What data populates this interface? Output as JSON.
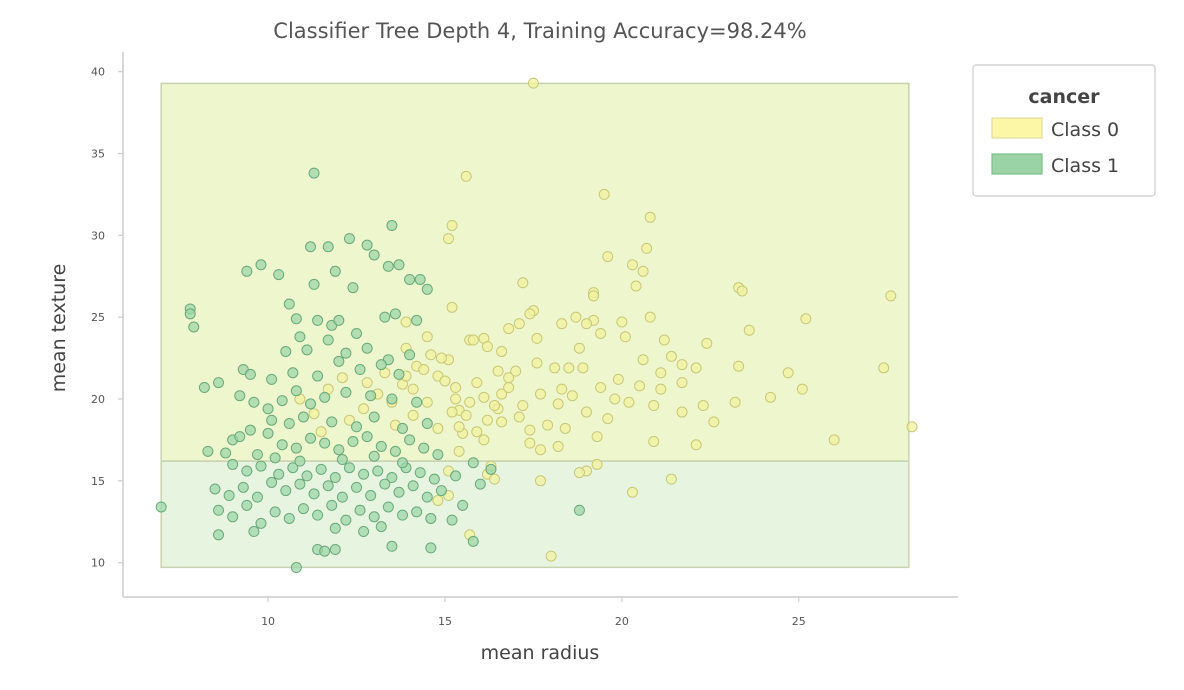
{
  "chart_data": {
    "type": "scatter",
    "title": "Classifier Tree Depth 4, Training Accuracy=98.24%",
    "xlabel": "mean radius",
    "ylabel": "mean texture",
    "xlim": [
      5.9,
      29.5
    ],
    "ylim": [
      7.9,
      41.2
    ],
    "xticks": [
      10,
      15,
      20,
      25
    ],
    "yticks": [
      10,
      15,
      20,
      25,
      30,
      35,
      40
    ],
    "grid": false,
    "legend": {
      "title": "cancer",
      "placement": "outside-top-right",
      "entries": [
        {
          "label": "Class 0",
          "color": "#fbf7a6"
        },
        {
          "label": "Class 1",
          "color": "#9ad4a6"
        }
      ]
    },
    "regions": [
      {
        "class": "Class 0",
        "x": [
          6.98,
          28.11
        ],
        "y": [
          16.2,
          39.28
        ],
        "color": "#dcee9a"
      },
      {
        "class": "Class 1",
        "x": [
          6.98,
          28.11
        ],
        "y": [
          9.71,
          16.2
        ],
        "color": "#cfebc2"
      }
    ],
    "series": [
      {
        "name": "Class 0",
        "color": "#f2f2a0",
        "points": [
          [
            17.5,
            39.3
          ],
          [
            15.6,
            33.6
          ],
          [
            19.5,
            32.5
          ],
          [
            20.8,
            31.1
          ],
          [
            15.2,
            30.6
          ],
          [
            15.1,
            29.8
          ],
          [
            20.7,
            29.2
          ],
          [
            19.6,
            28.7
          ],
          [
            20.3,
            28.2
          ],
          [
            17.2,
            27.1
          ],
          [
            20.6,
            27.8
          ],
          [
            19.2,
            26.5
          ],
          [
            20.4,
            26.9
          ],
          [
            23.3,
            26.8
          ],
          [
            23.4,
            26.6
          ],
          [
            27.6,
            26.3
          ],
          [
            19.2,
            26.3
          ],
          [
            17.5,
            25.4
          ],
          [
            17.4,
            25.2
          ],
          [
            19.2,
            24.8
          ],
          [
            15.2,
            25.6
          ],
          [
            25.2,
            24.9
          ],
          [
            18.7,
            25.0
          ],
          [
            20.8,
            25.0
          ],
          [
            19.0,
            24.6
          ],
          [
            16.1,
            23.7
          ],
          [
            20.0,
            24.7
          ],
          [
            23.6,
            24.2
          ],
          [
            15.7,
            23.6
          ],
          [
            14.6,
            22.7
          ],
          [
            15.1,
            22.4
          ],
          [
            16.2,
            23.2
          ],
          [
            17.6,
            22.2
          ],
          [
            18.1,
            21.9
          ],
          [
            18.5,
            21.9
          ],
          [
            18.9,
            21.9
          ],
          [
            20.6,
            22.4
          ],
          [
            21.4,
            22.6
          ],
          [
            21.7,
            22.1
          ],
          [
            22.1,
            21.9
          ],
          [
            23.3,
            22.0
          ],
          [
            24.7,
            21.6
          ],
          [
            27.4,
            21.9
          ],
          [
            19.9,
            21.2
          ],
          [
            21.7,
            21.0
          ],
          [
            20.5,
            20.8
          ],
          [
            21.1,
            20.6
          ],
          [
            19.4,
            20.7
          ],
          [
            18.3,
            20.6
          ],
          [
            17.7,
            20.3
          ],
          [
            16.6,
            20.3
          ],
          [
            16.1,
            20.1
          ],
          [
            15.7,
            19.8
          ],
          [
            15.4,
            19.3
          ],
          [
            16.2,
            18.7
          ],
          [
            17.1,
            18.9
          ],
          [
            17.9,
            18.4
          ],
          [
            18.4,
            18.2
          ],
          [
            19.0,
            19.2
          ],
          [
            19.6,
            18.8
          ],
          [
            20.2,
            19.8
          ],
          [
            20.9,
            19.6
          ],
          [
            22.3,
            19.6
          ],
          [
            23.2,
            19.8
          ],
          [
            24.2,
            20.1
          ],
          [
            25.1,
            20.6
          ],
          [
            28.2,
            18.3
          ],
          [
            26.0,
            17.5
          ],
          [
            22.1,
            17.2
          ],
          [
            20.9,
            17.4
          ],
          [
            19.3,
            17.7
          ],
          [
            17.4,
            17.3
          ],
          [
            16.1,
            17.5
          ],
          [
            15.5,
            17.9
          ],
          [
            15.4,
            16.8
          ],
          [
            16.3,
            15.9
          ],
          [
            17.7,
            16.9
          ],
          [
            18.2,
            17.1
          ],
          [
            19.3,
            16.0
          ],
          [
            19.0,
            15.6
          ],
          [
            16.2,
            15.4
          ],
          [
            17.7,
            15.0
          ],
          [
            20.3,
            14.3
          ],
          [
            21.4,
            15.1
          ],
          [
            15.7,
            11.7
          ],
          [
            18.0,
            10.4
          ],
          [
            14.2,
            22.0
          ],
          [
            14.8,
            21.4
          ],
          [
            14.1,
            20.6
          ],
          [
            13.8,
            20.9
          ],
          [
            14.4,
            21.8
          ],
          [
            15.0,
            21.1
          ],
          [
            15.3,
            20.7
          ],
          [
            15.9,
            21.0
          ],
          [
            16.8,
            21.3
          ],
          [
            17.0,
            21.7
          ],
          [
            16.8,
            20.7
          ],
          [
            15.2,
            19.2
          ],
          [
            15.6,
            19.0
          ],
          [
            16.5,
            19.4
          ],
          [
            17.2,
            19.6
          ],
          [
            16.8,
            24.3
          ],
          [
            17.1,
            24.6
          ],
          [
            16.6,
            22.9
          ],
          [
            18.8,
            23.1
          ],
          [
            13.9,
            24.7
          ],
          [
            14.5,
            23.8
          ],
          [
            13.9,
            23.1
          ],
          [
            14.9,
            22.5
          ],
          [
            14.5,
            19.8
          ],
          [
            14.1,
            19.0
          ],
          [
            13.6,
            18.4
          ],
          [
            14.8,
            18.2
          ],
          [
            15.4,
            18.3
          ],
          [
            15.9,
            18.0
          ],
          [
            16.6,
            18.6
          ],
          [
            17.4,
            18.1
          ],
          [
            18.2,
            19.7
          ],
          [
            18.6,
            20.2
          ],
          [
            19.8,
            20.0
          ],
          [
            15.8,
            23.6
          ],
          [
            16.5,
            21.7
          ],
          [
            15.3,
            20.0
          ],
          [
            16.4,
            19.6
          ],
          [
            21.7,
            19.2
          ],
          [
            22.6,
            18.6
          ],
          [
            18.8,
            15.5
          ],
          [
            16.4,
            15.1
          ],
          [
            15.1,
            15.6
          ],
          [
            20.1,
            23.8
          ],
          [
            13.3,
            21.6
          ],
          [
            12.8,
            21.0
          ],
          [
            13.1,
            20.3
          ],
          [
            12.7,
            19.4
          ],
          [
            13.5,
            19.8
          ],
          [
            12.3,
            18.7
          ],
          [
            11.5,
            18.0
          ],
          [
            11.3,
            19.1
          ],
          [
            10.9,
            20.0
          ],
          [
            11.7,
            20.6
          ],
          [
            12.1,
            21.3
          ],
          [
            13.9,
            21.4
          ],
          [
            17.6,
            23.7
          ],
          [
            18.3,
            24.6
          ],
          [
            19.4,
            24.0
          ],
          [
            21.2,
            23.6
          ],
          [
            22.4,
            23.4
          ],
          [
            21.1,
            21.6
          ],
          [
            15.1,
            14.1
          ],
          [
            14.8,
            13.8
          ]
        ]
      },
      {
        "name": "Class 1",
        "color": "#9ed6a8",
        "points": [
          [
            11.3,
            33.8
          ],
          [
            11.2,
            29.3
          ],
          [
            11.7,
            29.3
          ],
          [
            12.3,
            29.8
          ],
          [
            12.8,
            29.4
          ],
          [
            13.0,
            28.8
          ],
          [
            13.5,
            30.6
          ],
          [
            13.4,
            28.1
          ],
          [
            13.7,
            28.2
          ],
          [
            9.8,
            28.2
          ],
          [
            9.4,
            27.8
          ],
          [
            10.3,
            27.6
          ],
          [
            11.3,
            27.0
          ],
          [
            11.9,
            27.8
          ],
          [
            12.4,
            26.8
          ],
          [
            14.0,
            27.3
          ],
          [
            14.3,
            27.3
          ],
          [
            14.5,
            26.7
          ],
          [
            7.8,
            25.5
          ],
          [
            7.8,
            25.2
          ],
          [
            7.9,
            24.4
          ],
          [
            10.6,
            25.8
          ],
          [
            10.8,
            24.9
          ],
          [
            11.4,
            24.8
          ],
          [
            11.8,
            24.5
          ],
          [
            12.0,
            24.8
          ],
          [
            12.5,
            24.0
          ],
          [
            13.3,
            25.0
          ],
          [
            13.6,
            25.2
          ],
          [
            14.2,
            24.8
          ],
          [
            10.9,
            23.8
          ],
          [
            11.7,
            23.6
          ],
          [
            10.5,
            22.9
          ],
          [
            11.1,
            23.0
          ],
          [
            12.2,
            22.8
          ],
          [
            12.8,
            23.1
          ],
          [
            13.4,
            22.4
          ],
          [
            14.0,
            22.7
          ],
          [
            9.3,
            21.8
          ],
          [
            9.5,
            21.5
          ],
          [
            10.1,
            21.2
          ],
          [
            10.7,
            21.6
          ],
          [
            11.4,
            21.4
          ],
          [
            12.0,
            22.3
          ],
          [
            12.6,
            21.8
          ],
          [
            13.2,
            22.1
          ],
          [
            13.7,
            21.5
          ],
          [
            8.2,
            20.7
          ],
          [
            8.6,
            21.0
          ],
          [
            9.2,
            20.2
          ],
          [
            9.6,
            19.8
          ],
          [
            10.0,
            19.4
          ],
          [
            10.4,
            19.9
          ],
          [
            10.8,
            20.5
          ],
          [
            11.2,
            19.7
          ],
          [
            11.6,
            20.1
          ],
          [
            12.2,
            20.4
          ],
          [
            12.9,
            20.2
          ],
          [
            13.5,
            20.0
          ],
          [
            14.2,
            19.8
          ],
          [
            8.3,
            16.8
          ],
          [
            8.8,
            16.7
          ],
          [
            9.0,
            17.5
          ],
          [
            9.2,
            17.7
          ],
          [
            9.5,
            18.1
          ],
          [
            10.0,
            17.9
          ],
          [
            10.4,
            17.2
          ],
          [
            10.8,
            17.0
          ],
          [
            11.2,
            17.6
          ],
          [
            11.6,
            17.3
          ],
          [
            12.0,
            16.9
          ],
          [
            12.4,
            17.4
          ],
          [
            12.8,
            17.7
          ],
          [
            13.2,
            17.1
          ],
          [
            13.6,
            16.8
          ],
          [
            14.0,
            17.5
          ],
          [
            14.4,
            17.0
          ],
          [
            14.8,
            16.6
          ],
          [
            9.0,
            16.0
          ],
          [
            9.4,
            15.6
          ],
          [
            9.8,
            15.9
          ],
          [
            10.3,
            15.4
          ],
          [
            10.7,
            15.8
          ],
          [
            11.1,
            15.3
          ],
          [
            11.5,
            15.7
          ],
          [
            11.9,
            15.2
          ],
          [
            12.3,
            15.8
          ],
          [
            12.7,
            15.4
          ],
          [
            13.1,
            15.6
          ],
          [
            13.5,
            15.2
          ],
          [
            13.9,
            15.8
          ],
          [
            14.3,
            15.5
          ],
          [
            14.7,
            15.1
          ],
          [
            15.3,
            15.3
          ],
          [
            15.8,
            16.1
          ],
          [
            8.5,
            14.5
          ],
          [
            8.9,
            14.1
          ],
          [
            9.3,
            14.6
          ],
          [
            9.7,
            14.0
          ],
          [
            10.1,
            14.9
          ],
          [
            10.5,
            14.4
          ],
          [
            10.9,
            14.8
          ],
          [
            11.3,
            14.2
          ],
          [
            11.7,
            14.7
          ],
          [
            12.1,
            14.0
          ],
          [
            12.5,
            14.6
          ],
          [
            12.9,
            14.1
          ],
          [
            13.3,
            14.8
          ],
          [
            13.7,
            14.3
          ],
          [
            14.1,
            14.7
          ],
          [
            14.5,
            14.0
          ],
          [
            14.9,
            14.4
          ],
          [
            8.6,
            13.2
          ],
          [
            9.0,
            12.8
          ],
          [
            9.4,
            13.5
          ],
          [
            9.8,
            12.4
          ],
          [
            10.2,
            13.1
          ],
          [
            10.6,
            12.7
          ],
          [
            11.0,
            13.3
          ],
          [
            11.4,
            12.9
          ],
          [
            11.8,
            13.5
          ],
          [
            12.2,
            12.6
          ],
          [
            12.6,
            13.2
          ],
          [
            13.0,
            12.8
          ],
          [
            13.4,
            13.4
          ],
          [
            13.8,
            12.9
          ],
          [
            14.2,
            13.1
          ],
          [
            14.6,
            12.7
          ],
          [
            15.2,
            12.6
          ],
          [
            15.8,
            11.3
          ],
          [
            8.6,
            11.7
          ],
          [
            9.6,
            11.9
          ],
          [
            11.4,
            10.8
          ],
          [
            11.6,
            10.7
          ],
          [
            11.9,
            10.8
          ],
          [
            13.5,
            11.0
          ],
          [
            14.6,
            10.9
          ],
          [
            10.8,
            9.7
          ],
          [
            6.98,
            13.4
          ],
          [
            18.8,
            13.2
          ],
          [
            10.1,
            18.7
          ],
          [
            10.6,
            18.5
          ],
          [
            11.0,
            18.9
          ],
          [
            11.8,
            18.6
          ],
          [
            12.5,
            18.3
          ],
          [
            13.0,
            18.9
          ],
          [
            13.8,
            18.2
          ],
          [
            14.5,
            18.5
          ],
          [
            10.9,
            16.2
          ],
          [
            12.1,
            16.3
          ],
          [
            13.0,
            16.5
          ],
          [
            13.8,
            16.1
          ],
          [
            9.7,
            16.6
          ],
          [
            10.2,
            16.4
          ],
          [
            16.3,
            15.7
          ],
          [
            16.0,
            14.8
          ],
          [
            15.5,
            13.5
          ],
          [
            12.7,
            11.9
          ],
          [
            13.2,
            12.2
          ],
          [
            11.9,
            12.1
          ]
        ]
      }
    ]
  }
}
